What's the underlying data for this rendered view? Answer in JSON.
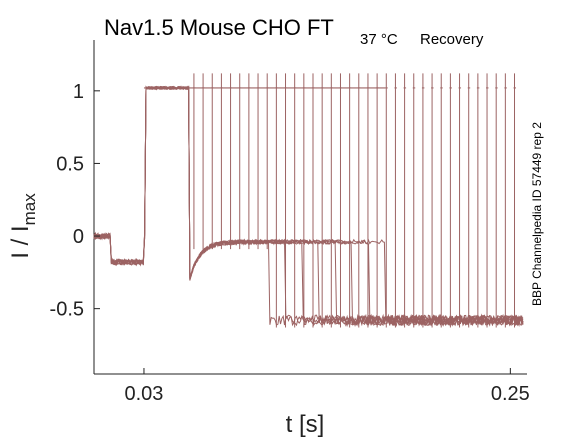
{
  "chart_data": {
    "type": "line",
    "title": {
      "main": "Nav1.5  Mouse  CHO FT",
      "subscript": "37 °C",
      "suffix": "Recovery"
    },
    "xlabel": "t [s]",
    "ylabel": {
      "base": "I / I",
      "sub": "max"
    },
    "side_label": "BBP Channelpedia ID 57449 rep 2",
    "x_ticks": [
      "0.03",
      "0.25"
    ],
    "y_ticks": [
      "1",
      "0.5",
      "0",
      "-0.5"
    ],
    "xlim": [
      0.0,
      0.26
    ],
    "ylim": [
      -0.95,
      1.35
    ],
    "trace_color": "#9c6363",
    "base_level": 0.0,
    "prepulse": {
      "start": 0.01,
      "end": 0.03,
      "level": -0.18
    },
    "step": {
      "start": 0.03,
      "level": 1.02
    },
    "relaxed_level": -0.04,
    "late_level": -0.58,
    "late_start": 0.105,
    "pulse_times": [
      0.06,
      0.0655,
      0.071,
      0.0765,
      0.082,
      0.0875,
      0.093,
      0.0985,
      0.104,
      0.1095,
      0.115,
      0.1205,
      0.126,
      0.1315,
      0.137,
      0.1425,
      0.148,
      0.1535,
      0.159,
      0.1645,
      0.17,
      0.1755,
      0.181,
      0.1865,
      0.192,
      0.1975,
      0.203,
      0.2085,
      0.214,
      0.2195,
      0.225,
      0.2305,
      0.236,
      0.2415,
      0.247,
      0.2525
    ],
    "pulse_peak": 1.12,
    "n_traces": 8,
    "grid": false,
    "legend": "none"
  }
}
